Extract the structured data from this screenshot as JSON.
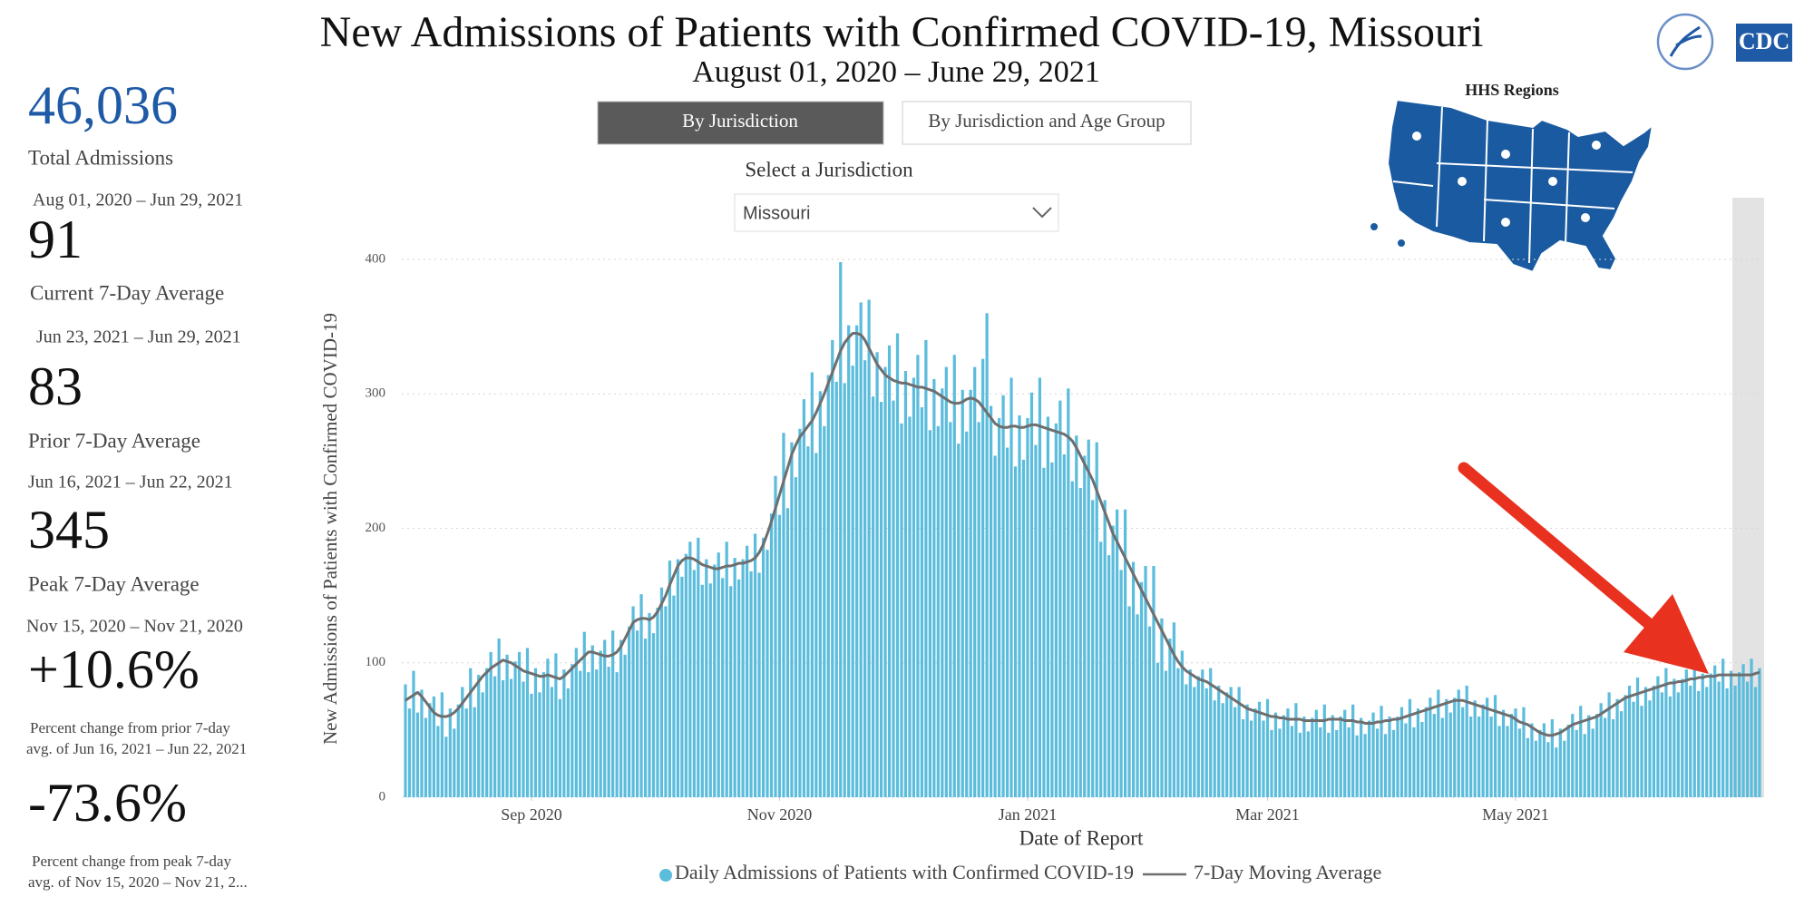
{
  "header": {
    "title": "New Admissions of Patients with Confirmed COVID-19, Missouri",
    "subtitle": "August 01, 2020 – June 29, 2021",
    "logo_text": "CDC"
  },
  "tabs": [
    "By Jurisdiction",
    "By Jurisdiction and Age Group"
  ],
  "selector": {
    "label": "Select a Jurisdiction",
    "value": "Missouri"
  },
  "map": {
    "title": "HHS Regions"
  },
  "stats": [
    {
      "value": "46,036",
      "label": "Total Admissions",
      "range": "Aug 01, 2020 – Jun 29, 2021"
    },
    {
      "value": "91",
      "label": "Current 7-Day Average",
      "range": "Jun 23, 2021 – Jun 29, 2021"
    },
    {
      "value": "83",
      "label": "Prior 7-Day Average",
      "range": "Jun 16, 2021 – Jun 22, 2021"
    },
    {
      "value": "345",
      "label": "Peak 7-Day Average",
      "range": "Nov 15, 2020 – Nov 21, 2020"
    },
    {
      "value": "+10.6%",
      "note": [
        "Percent change from prior 7-day",
        "avg. of Jun 16, 2021 – Jun 22, 2021"
      ]
    },
    {
      "value": "-73.6%",
      "note": [
        "Percent change from peak 7-day",
        "avg. of Nov 15, 2020 – Nov 21, 2..."
      ]
    }
  ],
  "chart_data": {
    "type": "bar",
    "y_label": "New Admissions of Patients with Confirmed COVID-19",
    "x_label": "Date of Report",
    "xlim": [
      0,
      333
    ],
    "xticks": [
      {
        "value": 31,
        "label": "Sep 2020"
      },
      {
        "value": 92,
        "label": "Nov 2020"
      },
      {
        "value": 153,
        "label": "Jan 2021"
      },
      {
        "value": 212,
        "label": "Mar 2021"
      },
      {
        "value": 273,
        "label": "May 2021"
      }
    ],
    "ylim": [
      0,
      400
    ],
    "yticks": [
      0,
      100,
      200,
      300,
      400
    ],
    "grid": true,
    "series": [
      {
        "name": "Daily Admissions of Patients with Confirmed COVID-19",
        "type": "bar",
        "color": "#5bbcdc",
        "values": [
          84,
          66,
          94,
          63,
          80,
          59,
          70,
          75,
          53,
          78,
          45,
          66,
          51,
          69,
          82,
          66,
          96,
          67,
          91,
          78,
          96,
          108,
          90,
          118,
          87,
          106,
          88,
          101,
          108,
          86,
          111,
          77,
          96,
          78,
          93,
          103,
          82,
          107,
          73,
          95,
          81,
          99,
          111,
          94,
          123,
          93,
          113,
          95,
          109,
          117,
          97,
          124,
          93,
          117,
          106,
          127,
          142,
          124,
          151,
          118,
          137,
          122,
          141,
          156,
          142,
          176,
          150,
          177,
          164,
          181,
          190,
          169,
          193,
          158,
          177,
          159,
          173,
          182,
          163,
          190,
          157,
          178,
          162,
          177,
          187,
          168,
          196,
          167,
          193,
          184,
          211,
          239,
          210,
          271,
          215,
          264,
          238,
          274,
          296,
          261,
          316,
          256,
          302,
          276,
          314,
          340,
          309,
          398,
          308,
          351,
          321,
          351,
          368,
          325,
          370,
          298,
          331,
          294,
          320,
          336,
          295,
          345,
          278,
          317,
          283,
          312,
          329,
          290,
          340,
          273,
          311,
          276,
          304,
          320,
          279,
          329,
          263,
          303,
          272,
          303,
          320,
          279,
          326,
          360,
          291,
          254,
          282,
          299,
          260,
          312,
          246,
          284,
          251,
          282,
          301,
          262,
          312,
          245,
          283,
          249,
          278,
          295,
          255,
          304,
          235,
          269,
          230,
          254,
          266,
          221,
          264,
          190,
          221,
          180,
          202,
          214,
          169,
          214,
          142,
          175,
          136,
          160,
          172,
          127,
          172,
          100,
          133,
          94,
          118,
          130,
          96,
          109,
          84,
          95,
          82,
          90,
          95,
          81,
          96,
          72,
          83,
          70,
          78,
          82,
          67,
          82,
          58,
          69,
          57,
          66,
          71,
          57,
          73,
          50,
          63,
          51,
          61,
          66,
          53,
          70,
          48,
          60,
          49,
          59,
          65,
          52,
          69,
          48,
          61,
          50,
          60,
          65,
          52,
          69,
          46,
          59,
          47,
          57,
          63,
          51,
          68,
          47,
          60,
          50,
          60,
          67,
          55,
          73,
          52,
          66,
          56,
          67,
          74,
          62,
          80,
          59,
          73,
          63,
          74,
          80,
          67,
          83,
          60,
          72,
          60,
          69,
          74,
          60,
          76,
          53,
          65,
          53,
          62,
          66,
          51,
          67,
          44,
          55,
          42,
          50,
          55,
          41,
          58,
          37,
          51,
          42,
          54,
          62,
          50,
          68,
          47,
          61,
          51,
          62,
          70,
          59,
          78,
          58,
          73,
          64,
          76,
          83,
          71,
          89,
          68,
          82,
          72,
          83,
          90,
          78,
          96,
          75,
          88,
          78,
          88,
          95,
          83,
          100,
          79,
          92,
          82,
          92,
          98,
          86,
          103,
          81,
          94,
          83,
          93,
          99,
          86,
          103,
          82,
          96
        ]
      },
      {
        "name": "7-Day Moving Average",
        "type": "line",
        "color": "#6e6e6e",
        "values": [
          72,
          74,
          76,
          78,
          75,
          71,
          67,
          63,
          61,
          60,
          60,
          61,
          63,
          66,
          70,
          74,
          78,
          82,
          86,
          90,
          93,
          96,
          98,
          100,
          102,
          101,
          100,
          98,
          96,
          94,
          93,
          92,
          91,
          90,
          90,
          91,
          90,
          89,
          88,
          90,
          93,
          96,
          99,
          102,
          105,
          108,
          108,
          107,
          106,
          105,
          105,
          106,
          108,
          112,
          118,
          124,
          130,
          132,
          133,
          133,
          132,
          134,
          138,
          144,
          150,
          158,
          165,
          172,
          176,
          178,
          178,
          177,
          175,
          173,
          172,
          171,
          170,
          170,
          171,
          172,
          172,
          173,
          174,
          174,
          175,
          176,
          178,
          182,
          188,
          196,
          205,
          215,
          225,
          235,
          245,
          255,
          262,
          268,
          272,
          276,
          280,
          286,
          293,
          300,
          308,
          316,
          324,
          332,
          338,
          342,
          345,
          345,
          344,
          340,
          334,
          328,
          322,
          318,
          314,
          312,
          310,
          309,
          308,
          308,
          307,
          306,
          305,
          305,
          304,
          303,
          302,
          300,
          298,
          296,
          294,
          293,
          293,
          294,
          296,
          297,
          296,
          294,
          290,
          286,
          282,
          278,
          276,
          275,
          275,
          276,
          276,
          275,
          275,
          276,
          277,
          277,
          276,
          275,
          274,
          273,
          272,
          271,
          270,
          268,
          265,
          260,
          254,
          248,
          242,
          236,
          228,
          220,
          212,
          204,
          196,
          190,
          184,
          178,
          172,
          166,
          160,
          154,
          148,
          142,
          136,
          130,
          124,
          118,
          112,
          106,
          101,
          97,
          94,
          92,
          90,
          88,
          87,
          86,
          84,
          82,
          80,
          78,
          76,
          74,
          72,
          70,
          68,
          66,
          65,
          64,
          63,
          62,
          61,
          60,
          60,
          59,
          59,
          58,
          58,
          58,
          58,
          57,
          57,
          57,
          57,
          57,
          57,
          58,
          58,
          58,
          58,
          57,
          57,
          57,
          56,
          56,
          55,
          55,
          55,
          56,
          56,
          57,
          57,
          58,
          58,
          59,
          60,
          61,
          62,
          63,
          64,
          65,
          66,
          67,
          68,
          69,
          70,
          71,
          72,
          72,
          72,
          71,
          70,
          69,
          68,
          67,
          66,
          65,
          64,
          63,
          62,
          61,
          60,
          58,
          56,
          55,
          54,
          52,
          50,
          48,
          47,
          46,
          46,
          47,
          48,
          50,
          52,
          54,
          55,
          56,
          57,
          58,
          59,
          60,
          62,
          64,
          66,
          68,
          70,
          72,
          74,
          75,
          76,
          77,
          78,
          79,
          80,
          81,
          82,
          83,
          84,
          85,
          85,
          86,
          86,
          87,
          88,
          88,
          89,
          89,
          90,
          90,
          90,
          91,
          91,
          91,
          91,
          91,
          91,
          91,
          91,
          91,
          92,
          93
        ]
      }
    ]
  }
}
